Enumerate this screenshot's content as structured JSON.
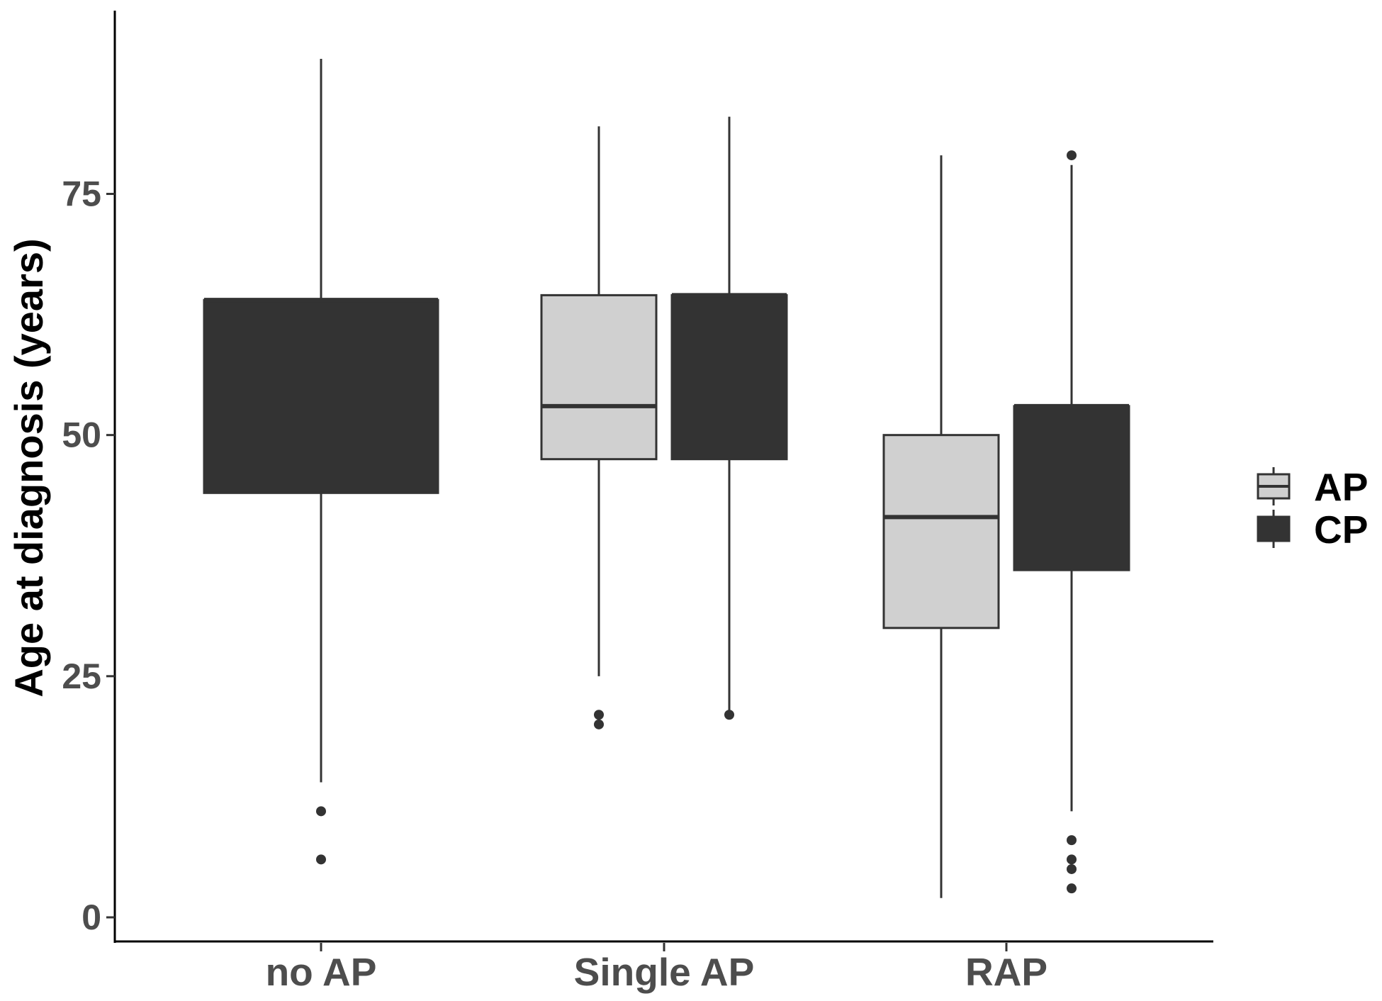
{
  "chart_data": {
    "type": "boxplot",
    "xlabel": "",
    "ylabel": "Age at diagnosis (years)",
    "ylim": [
      -2.5,
      94
    ],
    "yticks": [
      0,
      25,
      50,
      75
    ],
    "categories": [
      "no AP",
      "Single AP",
      "RAP"
    ],
    "legend": {
      "position": "right",
      "entries": [
        "AP",
        "CP"
      ]
    },
    "grid": false,
    "colors": {
      "AP": "#d0d0d0",
      "CP": "#333333",
      "outline": "#333333",
      "axis": "#000000"
    },
    "boxes": [
      {
        "category": "no AP",
        "group": "CP",
        "whisker_low": 14,
        "q1": 44,
        "median": 64,
        "q3": 64,
        "whisker_high": 89,
        "outliers": [
          11,
          6
        ]
      },
      {
        "category": "Single AP",
        "group": "AP",
        "whisker_low": 25,
        "q1": 47.5,
        "median": 53,
        "q3": 64.5,
        "whisker_high": 82,
        "outliers": [
          21,
          20
        ]
      },
      {
        "category": "Single AP",
        "group": "CP",
        "whisker_low": 21,
        "q1": 47.5,
        "median": 64.5,
        "q3": 64.5,
        "whisker_high": 83,
        "outliers": [
          21
        ]
      },
      {
        "category": "RAP",
        "group": "AP",
        "whisker_low": 2,
        "q1": 30,
        "median": 41.5,
        "q3": 50,
        "whisker_high": 79,
        "outliers": []
      },
      {
        "category": "RAP",
        "group": "CP",
        "whisker_low": 11,
        "q1": 36,
        "median": 53,
        "q3": 53,
        "whisker_high": 78,
        "outliers": [
          79,
          8,
          6,
          5,
          3
        ]
      }
    ]
  }
}
